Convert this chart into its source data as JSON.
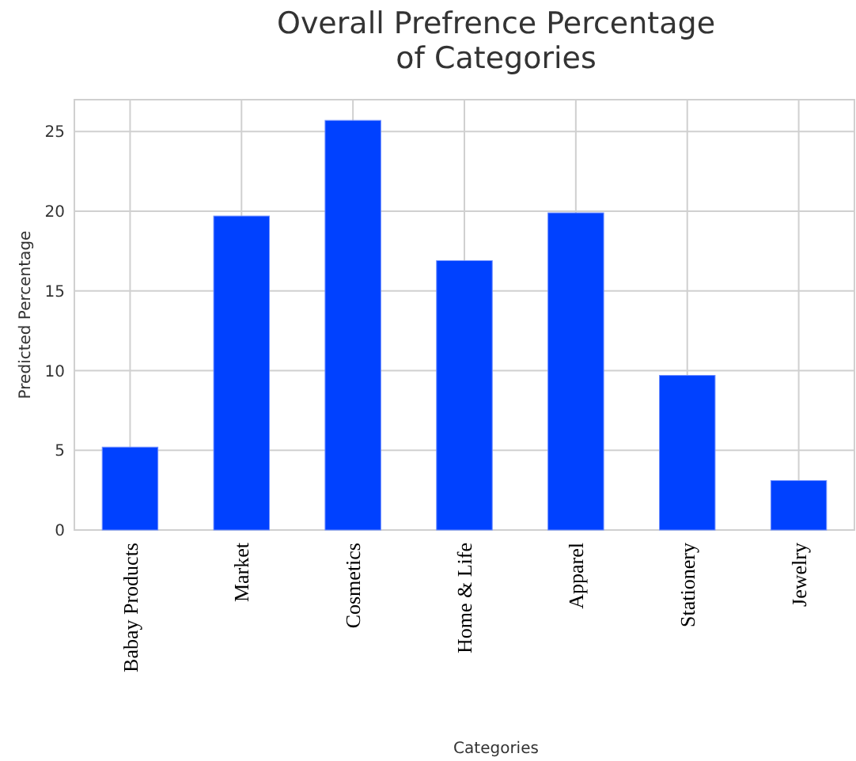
{
  "chart_data": {
    "type": "bar",
    "title": "Overall Prefrence Percentage\nof Categories",
    "xlabel": "Categories",
    "ylabel": "Predicted Percentage",
    "categories": [
      "Babay Products",
      "Market",
      "Cosmetics",
      "Home & Life",
      "Apparel",
      "Stationery",
      "Jewelry"
    ],
    "values": [
      5.2,
      19.7,
      25.7,
      16.9,
      19.9,
      9.7,
      3.1
    ],
    "color": "#0041ff",
    "ylim": [
      0,
      27
    ],
    "yticks": [
      0,
      5,
      10,
      15,
      20,
      25
    ],
    "grid": true
  }
}
